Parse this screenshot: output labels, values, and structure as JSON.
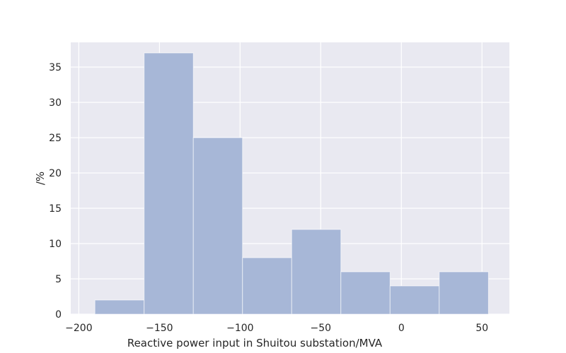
{
  "chart_data": {
    "type": "bar",
    "subtype": "histogram",
    "title": "",
    "xlabel": "Reactive power input in Shuitou substation/MVA",
    "ylabel": "/%",
    "xlim": [
      -205,
      67
    ],
    "ylim": [
      0,
      38.5
    ],
    "xticks": [
      -200,
      -150,
      -100,
      -50,
      0,
      50
    ],
    "yticks": [
      0,
      5,
      10,
      15,
      20,
      25,
      30,
      35
    ],
    "grid": true,
    "colors": {
      "background": "#e9e9f1",
      "grid": "#ffffff",
      "bar": "#a7b7d7"
    },
    "bins": [
      {
        "x0": -190,
        "x1": -159.5,
        "value": 2
      },
      {
        "x0": -159.5,
        "x1": -129,
        "value": 37
      },
      {
        "x0": -129,
        "x1": -98.5,
        "value": 25
      },
      {
        "x0": -98.5,
        "x1": -68,
        "value": 8
      },
      {
        "x0": -68,
        "x1": -37.5,
        "value": 12
      },
      {
        "x0": -37.5,
        "x1": -7,
        "value": 6
      },
      {
        "x0": -7,
        "x1": 23.5,
        "value": 4
      },
      {
        "x0": 23.5,
        "x1": 54,
        "value": 6
      }
    ]
  }
}
